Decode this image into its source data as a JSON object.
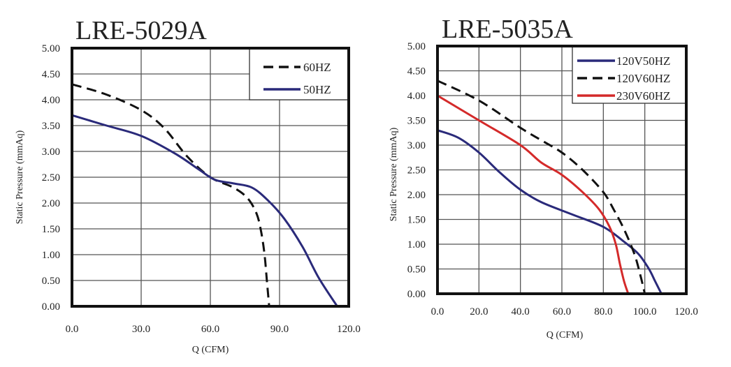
{
  "chart_data": [
    {
      "type": "line",
      "title": "LRE-5029A",
      "xlabel": "Q (CFM)",
      "ylabel": "Static Pressure (mmAq)",
      "xlim": [
        0,
        120
      ],
      "ylim": [
        0,
        5
      ],
      "x_ticks": [
        "0.0",
        "30.0",
        "60.0",
        "90.0",
        "120.0"
      ],
      "x_tick_values": [
        0,
        30,
        60,
        90,
        120
      ],
      "y_ticks": [
        "0.00",
        "0.50",
        "1.00",
        "1.50",
        "2.00",
        "2.50",
        "3.00",
        "3.50",
        "4.00",
        "4.50",
        "5.00"
      ],
      "y_tick_values": [
        0,
        0.5,
        1,
        1.5,
        2,
        2.5,
        3,
        3.5,
        4,
        4.5,
        5
      ],
      "grid": true,
      "legend_position": "top-right",
      "series": [
        {
          "name": "60HZ",
          "color": "#111111",
          "dash": true,
          "x": [
            0,
            15,
            30,
            40,
            50,
            60,
            70,
            76,
            80,
            82,
            83.5,
            84.5,
            85.5
          ],
          "y": [
            4.3,
            4.1,
            3.8,
            3.45,
            2.9,
            2.5,
            2.3,
            2.1,
            1.8,
            1.45,
            1.0,
            0.5,
            0
          ]
        },
        {
          "name": "50HZ",
          "color": "#2a2a7a",
          "dash": false,
          "x": [
            0,
            15,
            30,
            45,
            55,
            62,
            70,
            78,
            85,
            92,
            100,
            107,
            115
          ],
          "y": [
            3.7,
            3.5,
            3.3,
            2.95,
            2.65,
            2.45,
            2.38,
            2.3,
            2.05,
            1.7,
            1.15,
            0.55,
            0
          ]
        }
      ]
    },
    {
      "type": "line",
      "title": "LRE-5035A",
      "xlabel": "Q (CFM)",
      "ylabel": "Static Pressure (mmAq)",
      "xlim": [
        0,
        120
      ],
      "ylim": [
        0,
        5
      ],
      "x_ticks": [
        "0.0",
        "20.0",
        "40.0",
        "60.0",
        "80.0",
        "100.0",
        "120.0"
      ],
      "x_tick_values": [
        0,
        20,
        40,
        60,
        80,
        100,
        120
      ],
      "y_ticks": [
        "0.00",
        "0.50",
        "1.00",
        "1.50",
        "2.00",
        "2.50",
        "3.00",
        "3.50",
        "4.00",
        "4.50",
        "5.00"
      ],
      "y_tick_values": [
        0,
        0.5,
        1,
        1.5,
        2,
        2.5,
        3,
        3.5,
        4,
        4.5,
        5
      ],
      "grid": true,
      "legend_position": "top-right",
      "series": [
        {
          "name": "120V50HZ",
          "color": "#2a2a7a",
          "dash": false,
          "x": [
            0,
            10,
            20,
            30,
            40,
            50,
            65,
            80,
            90,
            97,
            102,
            105,
            108
          ],
          "y": [
            3.3,
            3.15,
            2.85,
            2.45,
            2.1,
            1.85,
            1.6,
            1.35,
            1.05,
            0.8,
            0.5,
            0.25,
            0
          ]
        },
        {
          "name": "120V60HZ",
          "color": "#111111",
          "dash": true,
          "x": [
            0,
            20,
            40,
            50,
            60,
            70,
            80,
            85,
            90,
            95,
            98,
            100
          ],
          "y": [
            4.3,
            3.9,
            3.35,
            3.1,
            2.85,
            2.5,
            2.05,
            1.7,
            1.3,
            0.8,
            0.35,
            0
          ]
        },
        {
          "name": "230V60HZ",
          "color": "#d42a2a",
          "dash": false,
          "x": [
            0,
            20,
            40,
            50,
            60,
            70,
            78,
            83,
            86,
            88,
            90,
            92
          ],
          "y": [
            4.0,
            3.5,
            3.0,
            2.65,
            2.4,
            2.05,
            1.7,
            1.35,
            1.0,
            0.6,
            0.25,
            0
          ]
        }
      ]
    }
  ]
}
